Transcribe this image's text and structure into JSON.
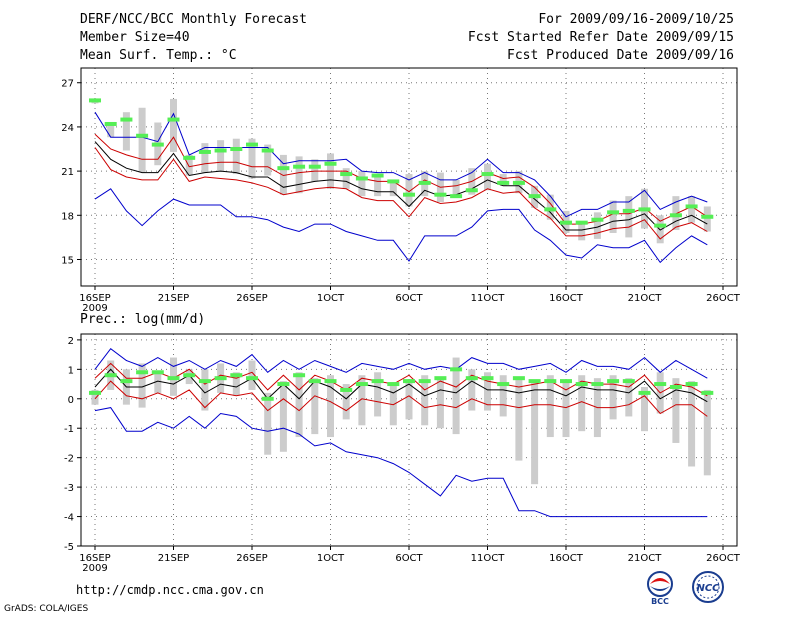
{
  "header": {
    "title": "DERF/NCC/BCC Monthly Forecast",
    "member_size": "Member Size=40",
    "variable": "Mean Surf. Temp.: °C",
    "period": "For 2009/09/16-2009/10/25",
    "started": "Fcst Started Refer Date 2009/09/15",
    "produced": "Fcst Produced Date 2009/09/16"
  },
  "footer": {
    "url": "http://cmdp.ncc.cma.gov.cn",
    "grads": "GrADS: COLA/IGES",
    "logo_left_text": "BCC",
    "logo_right_text": "NCC"
  },
  "colors": {
    "ensemble_max": "#0000cc",
    "ensemble_min": "#0000cc",
    "plus_sd": "#cc0000",
    "minus_sd": "#cc0000",
    "mean": "#000000",
    "member_box": "#cccccc",
    "median_marker": "#55ee55"
  },
  "chart_data": [
    {
      "type": "line",
      "title": "Mean Surf. Temp.: °C",
      "xlabel": "",
      "ylabel": "",
      "ylim": [
        13.2,
        28
      ],
      "yticks": [
        15,
        18,
        21,
        24,
        27
      ],
      "xticks": [
        {
          "day": 0,
          "label": "16SEP",
          "sublabel": "2009"
        },
        {
          "day": 5,
          "label": "21SEP"
        },
        {
          "day": 10,
          "label": "26SEP"
        },
        {
          "day": 15,
          "label": "1OCT"
        },
        {
          "day": 20,
          "label": "6OCT"
        },
        {
          "day": 25,
          "label": "11OCT"
        },
        {
          "day": 30,
          "label": "16OCT"
        },
        {
          "day": 35,
          "label": "21OCT"
        },
        {
          "day": 40,
          "label": "26OCT"
        }
      ],
      "grid": true,
      "x": [
        0,
        1,
        2,
        3,
        4,
        5,
        6,
        7,
        8,
        9,
        10,
        11,
        12,
        13,
        14,
        15,
        16,
        17,
        18,
        19,
        20,
        21,
        22,
        23,
        24,
        25,
        26,
        27,
        28,
        29,
        30,
        31,
        32,
        33,
        34,
        35,
        36,
        37,
        38,
        39
      ],
      "series": [
        {
          "name": "max",
          "values": [
            25.0,
            23.3,
            23.3,
            23.3,
            23.0,
            24.9,
            22.1,
            22.6,
            22.6,
            22.6,
            22.6,
            22.6,
            21.5,
            21.7,
            21.7,
            21.7,
            21.8,
            21.0,
            20.9,
            20.9,
            20.4,
            20.9,
            20.4,
            20.4,
            20.9,
            21.8,
            20.9,
            20.9,
            20.4,
            19.3,
            17.9,
            18.4,
            18.4,
            18.9,
            18.9,
            19.7,
            18.4,
            18.9,
            19.3,
            18.9
          ]
        },
        {
          "name": "plus_sd",
          "values": [
            23.5,
            22.5,
            22.1,
            21.8,
            21.8,
            23.3,
            21.3,
            21.5,
            21.6,
            21.6,
            21.3,
            21.3,
            20.7,
            20.9,
            21.0,
            21.0,
            21.0,
            20.5,
            20.3,
            20.3,
            19.6,
            20.4,
            19.9,
            20.0,
            20.3,
            20.9,
            20.5,
            20.6,
            19.9,
            18.8,
            17.4,
            17.4,
            17.6,
            18.1,
            18.1,
            18.5,
            17.6,
            18.1,
            18.6,
            17.9
          ]
        },
        {
          "name": "mean",
          "values": [
            23.0,
            21.8,
            21.2,
            20.9,
            20.9,
            22.2,
            20.7,
            20.9,
            21.0,
            20.9,
            20.6,
            20.6,
            19.9,
            20.1,
            20.3,
            20.4,
            20.3,
            19.8,
            19.6,
            19.6,
            18.6,
            19.7,
            19.3,
            19.4,
            19.8,
            20.4,
            20.0,
            20.0,
            19.1,
            18.2,
            17.0,
            17.0,
            17.2,
            17.6,
            17.7,
            18.1,
            17.0,
            17.6,
            18.0,
            17.4
          ]
        },
        {
          "name": "minus_sd",
          "values": [
            22.6,
            21.1,
            20.6,
            20.4,
            20.4,
            21.8,
            20.3,
            20.6,
            20.5,
            20.4,
            20.2,
            19.9,
            19.4,
            19.6,
            19.8,
            19.9,
            19.8,
            19.2,
            19.0,
            19.0,
            17.9,
            19.2,
            18.8,
            18.9,
            19.2,
            19.8,
            19.5,
            19.6,
            18.5,
            17.8,
            16.6,
            16.6,
            16.8,
            17.1,
            17.2,
            17.7,
            16.4,
            17.2,
            17.5,
            16.9
          ]
        },
        {
          "name": "min",
          "values": [
            19.1,
            19.8,
            18.3,
            17.3,
            18.3,
            19.1,
            18.7,
            18.7,
            18.7,
            17.9,
            17.9,
            17.7,
            17.2,
            16.9,
            17.4,
            17.4,
            16.9,
            16.6,
            16.3,
            16.3,
            14.9,
            16.6,
            16.6,
            16.6,
            17.2,
            18.3,
            18.4,
            18.4,
            17.0,
            16.3,
            15.3,
            15.1,
            16.0,
            15.8,
            15.8,
            16.3,
            14.8,
            15.8,
            16.6,
            16.0
          ]
        }
      ],
      "boxes": [
        [
          25.6,
          25.9
        ],
        [
          23.3,
          24.3
        ],
        [
          22.4,
          25.0
        ],
        [
          20.9,
          25.3
        ],
        [
          21.4,
          24.3
        ],
        [
          22.3,
          25.9
        ],
        [
          20.7,
          22.1
        ],
        [
          20.9,
          22.9
        ],
        [
          21.0,
          23.1
        ],
        [
          20.8,
          23.2
        ],
        [
          20.5,
          23.2
        ],
        [
          20.7,
          22.8
        ],
        [
          19.4,
          22.1
        ],
        [
          19.5,
          22.0
        ],
        [
          20.3,
          21.8
        ],
        [
          19.8,
          22.2
        ],
        [
          19.8,
          21.2
        ],
        [
          19.3,
          21.0
        ],
        [
          19.3,
          20.8
        ],
        [
          19.3,
          20.3
        ],
        [
          18.6,
          20.8
        ],
        [
          19.3,
          21.0
        ],
        [
          18.9,
          20.9
        ],
        [
          19.2,
          20.4
        ],
        [
          19.4,
          21.2
        ],
        [
          19.7,
          21.5
        ],
        [
          20.0,
          20.8
        ],
        [
          19.5,
          21.0
        ],
        [
          18.5,
          20.0
        ],
        [
          17.7,
          19.4
        ],
        [
          16.8,
          18.3
        ],
        [
          16.3,
          17.6
        ],
        [
          16.4,
          18.2
        ],
        [
          16.8,
          19.0
        ],
        [
          16.5,
          19.3
        ],
        [
          17.1,
          19.8
        ],
        [
          16.1,
          18.0
        ],
        [
          17.0,
          19.3
        ],
        [
          17.5,
          19.3
        ],
        [
          16.9,
          18.6
        ]
      ],
      "medians": [
        25.8,
        24.2,
        24.5,
        23.4,
        22.8,
        24.5,
        21.9,
        22.3,
        22.4,
        22.5,
        22.8,
        22.4,
        21.2,
        21.3,
        21.3,
        21.5,
        20.8,
        20.5,
        20.7,
        20.3,
        19.4,
        20.2,
        19.4,
        19.3,
        19.7,
        20.8,
        20.2,
        20.2,
        19.3,
        18.4,
        17.5,
        17.5,
        17.7,
        18.2,
        18.3,
        18.4,
        17.3,
        18.0,
        18.6,
        17.9
      ]
    },
    {
      "type": "line",
      "title": "Prec.: log(mm/d)",
      "xlabel": "",
      "ylabel": "",
      "ylim": [
        -5,
        2.2
      ],
      "yticks": [
        -5,
        -4,
        -3,
        -2,
        -1,
        0,
        1,
        2
      ],
      "xticks": [
        {
          "day": 0,
          "label": "16SEP",
          "sublabel": "2009"
        },
        {
          "day": 5,
          "label": "21SEP"
        },
        {
          "day": 10,
          "label": "26SEP"
        },
        {
          "day": 15,
          "label": "1OCT"
        },
        {
          "day": 20,
          "label": "6OCT"
        },
        {
          "day": 25,
          "label": "11OCT"
        },
        {
          "day": 30,
          "label": "16OCT"
        },
        {
          "day": 35,
          "label": "21OCT"
        },
        {
          "day": 40,
          "label": "26OCT"
        }
      ],
      "grid": true,
      "x": [
        0,
        1,
        2,
        3,
        4,
        5,
        6,
        7,
        8,
        9,
        10,
        11,
        12,
        13,
        14,
        15,
        16,
        17,
        18,
        19,
        20,
        21,
        22,
        23,
        24,
        25,
        26,
        27,
        28,
        29,
        30,
        31,
        32,
        33,
        34,
        35,
        36,
        37,
        38,
        39
      ],
      "series": [
        {
          "name": "max",
          "values": [
            1.0,
            1.7,
            1.3,
            1.1,
            1.4,
            1.1,
            1.3,
            1.0,
            1.3,
            1.1,
            1.5,
            0.9,
            1.3,
            1.0,
            1.3,
            1.1,
            0.9,
            1.2,
            1.1,
            1.0,
            1.2,
            1.0,
            1.1,
            1.0,
            1.4,
            1.2,
            1.2,
            1.0,
            1.1,
            1.2,
            0.9,
            1.3,
            1.1,
            1.1,
            1.0,
            1.4,
            0.9,
            1.3,
            1.0,
            0.7
          ]
        },
        {
          "name": "plus_sd",
          "values": [
            0.7,
            1.2,
            0.7,
            0.7,
            0.9,
            0.7,
            1.0,
            0.5,
            0.8,
            0.7,
            0.9,
            0.3,
            0.8,
            0.3,
            0.8,
            0.6,
            0.3,
            0.7,
            0.6,
            0.5,
            0.8,
            0.3,
            0.6,
            0.4,
            0.8,
            0.6,
            0.5,
            0.4,
            0.5,
            0.6,
            0.3,
            0.6,
            0.5,
            0.5,
            0.4,
            0.8,
            0.2,
            0.5,
            0.4,
            0.1
          ]
        },
        {
          "name": "mean",
          "values": [
            0.4,
            1.0,
            0.4,
            0.4,
            0.6,
            0.5,
            0.8,
            0.2,
            0.5,
            0.4,
            0.7,
            0.0,
            0.5,
            0.0,
            0.6,
            0.4,
            0.0,
            0.5,
            0.4,
            0.2,
            0.5,
            0.1,
            0.3,
            0.2,
            0.6,
            0.3,
            0.3,
            0.2,
            0.3,
            0.3,
            0.1,
            0.4,
            0.3,
            0.3,
            0.2,
            0.6,
            0.0,
            0.3,
            0.2,
            -0.1
          ]
        },
        {
          "name": "minus_sd",
          "values": [
            0.0,
            0.6,
            0.1,
            0.0,
            0.2,
            0.0,
            0.3,
            -0.3,
            0.2,
            0.1,
            0.2,
            -0.4,
            0.0,
            -0.4,
            0.1,
            -0.1,
            -0.4,
            0.0,
            -0.1,
            -0.2,
            0.1,
            -0.3,
            -0.2,
            -0.3,
            0.0,
            -0.2,
            -0.2,
            -0.3,
            -0.2,
            -0.2,
            -0.3,
            -0.1,
            -0.3,
            -0.3,
            -0.2,
            0.1,
            -0.5,
            -0.2,
            -0.2,
            -0.6
          ]
        },
        {
          "name": "min",
          "values": [
            -0.4,
            -0.3,
            -1.1,
            -1.1,
            -0.8,
            -1.0,
            -0.6,
            -1.0,
            -0.5,
            -0.6,
            -1.0,
            -1.1,
            -1.0,
            -1.2,
            -1.6,
            -1.5,
            -1.8,
            -1.9,
            -2.0,
            -2.2,
            -2.5,
            -2.9,
            -3.3,
            -2.6,
            -2.8,
            -2.7,
            -2.7,
            -3.8,
            -3.8,
            -4.0,
            -4.0,
            -4.0,
            -4.0,
            -4.0,
            -4.0,
            -4.0,
            -4.0,
            -4.0,
            -4.0,
            -4.0
          ]
        }
      ],
      "boxes": [
        [
          -0.2,
          0.3
        ],
        [
          0.3,
          1.3
        ],
        [
          -0.2,
          1.0
        ],
        [
          -0.3,
          1.2
        ],
        [
          0.2,
          0.9
        ],
        [
          0.1,
          1.4
        ],
        [
          0.5,
          1.0
        ],
        [
          -0.4,
          1.0
        ],
        [
          0.2,
          1.2
        ],
        [
          0.1,
          0.9
        ],
        [
          0.3,
          1.3
        ],
        [
          -1.9,
          0.2
        ],
        [
          -1.8,
          0.6
        ],
        [
          -1.3,
          0.9
        ],
        [
          -1.2,
          0.7
        ],
        [
          -1.3,
          0.8
        ],
        [
          -0.7,
          0.5
        ],
        [
          -0.9,
          0.8
        ],
        [
          -0.6,
          0.9
        ],
        [
          -0.9,
          0.5
        ],
        [
          -0.7,
          0.6
        ],
        [
          -0.9,
          0.8
        ],
        [
          -1.0,
          0.7
        ],
        [
          -1.2,
          1.4
        ],
        [
          -0.4,
          1.0
        ],
        [
          -0.4,
          0.9
        ],
        [
          -0.6,
          0.8
        ],
        [
          -2.1,
          0.7
        ],
        [
          -2.9,
          0.6
        ],
        [
          -1.3,
          0.8
        ],
        [
          -1.3,
          0.6
        ],
        [
          -1.1,
          0.8
        ],
        [
          -1.3,
          0.7
        ],
        [
          -0.7,
          0.8
        ],
        [
          -0.6,
          0.7
        ],
        [
          -1.1,
          0.4
        ],
        [
          -0.5,
          0.9
        ],
        [
          -1.5,
          0.7
        ],
        [
          -2.3,
          0.6
        ],
        [
          -2.6,
          0.3
        ]
      ],
      "medians": [
        0.2,
        0.8,
        0.6,
        0.9,
        0.9,
        0.7,
        0.8,
        0.6,
        0.7,
        0.8,
        0.7,
        0.0,
        0.5,
        0.8,
        0.6,
        0.6,
        0.3,
        0.5,
        0.6,
        0.5,
        0.6,
        0.6,
        0.7,
        1.0,
        0.7,
        0.7,
        0.5,
        0.7,
        0.6,
        0.6,
        0.6,
        0.5,
        0.5,
        0.6,
        0.6,
        0.2,
        0.5,
        0.4,
        0.5,
        0.2
      ]
    }
  ]
}
